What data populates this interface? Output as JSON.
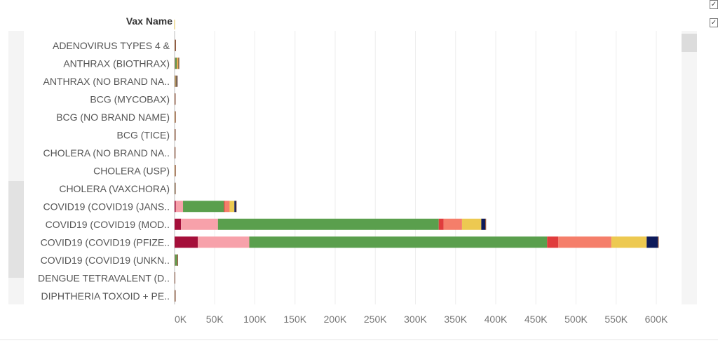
{
  "header": {
    "axis_title": "Vax Name"
  },
  "chart_data": {
    "type": "bar",
    "orientation": "horizontal",
    "stacked": true,
    "title": "",
    "ylabel": "Vax Name",
    "xlabel": "",
    "xlim": [
      0,
      600000
    ],
    "x_ticks": [
      "0K",
      "50K",
      "100K",
      "150K",
      "200K",
      "250K",
      "300K",
      "350K",
      "400K",
      "450K",
      "500K",
      "550K",
      "600K"
    ],
    "x_tick_values": [
      0,
      50000,
      100000,
      150000,
      200000,
      250000,
      300000,
      350000,
      400000,
      450000,
      500000,
      550000,
      600000
    ],
    "grid": "vertical",
    "legend": "none",
    "categories": [
      "ADENOVIRUS TYPES 4 &",
      "ANTHRAX (BIOTHRAX)",
      "ANTHRAX (NO BRAND NA..",
      "BCG (MYCOBAX)",
      "BCG (NO BRAND NAME)",
      "BCG (TICE)",
      "CHOLERA (NO BRAND NA..",
      "CHOLERA (USP)",
      "CHOLERA (VAXCHORA)",
      "COVID19 (COVID19 (JANS..",
      "COVID19 (COVID19 (MOD..",
      "COVID19 (COVID19 (PFIZE..",
      "COVID19 (COVID19 (UNKN..",
      "DENGUE TETRAVALENT (D..",
      "DIPHTHERIA TOXOID + PE.."
    ],
    "series": [
      {
        "color": "#a50f3a",
        "values": [
          100,
          200,
          150,
          50,
          30,
          60,
          40,
          30,
          50,
          1500,
          8000,
          29000,
          200,
          30,
          60
        ]
      },
      {
        "color": "#f7a1aa",
        "values": [
          150,
          400,
          300,
          60,
          40,
          80,
          50,
          40,
          80,
          9000,
          46000,
          64000,
          300,
          30,
          80
        ]
      },
      {
        "color": "#5a9f4d",
        "values": [
          400,
          2000,
          800,
          150,
          80,
          200,
          120,
          80,
          300,
          51000,
          275000,
          371000,
          2500,
          60,
          200
        ]
      },
      {
        "color": "#e03c3c",
        "values": [
          30,
          300,
          150,
          20,
          10,
          20,
          15,
          10,
          20,
          1000,
          6000,
          14000,
          100,
          10,
          20
        ]
      },
      {
        "color": "#f57e6a",
        "values": [
          60,
          400,
          200,
          30,
          20,
          30,
          20,
          20,
          30,
          6000,
          23000,
          66000,
          150,
          20,
          30
        ]
      },
      {
        "color": "#edc951",
        "values": [
          100,
          1500,
          600,
          40,
          500,
          40,
          30,
          500,
          40,
          6000,
          24000,
          44000,
          150,
          20,
          30
        ]
      },
      {
        "color": "#0d1a5a",
        "values": [
          20,
          300,
          800,
          10,
          10,
          10,
          10,
          10,
          10,
          2000,
          5000,
          14000,
          60,
          10,
          10
        ]
      },
      {
        "color": "#8b4a2b",
        "values": [
          20,
          200,
          300,
          10,
          10,
          10,
          10,
          10,
          10,
          500,
          1000,
          1000,
          30,
          10,
          10
        ]
      }
    ]
  }
}
